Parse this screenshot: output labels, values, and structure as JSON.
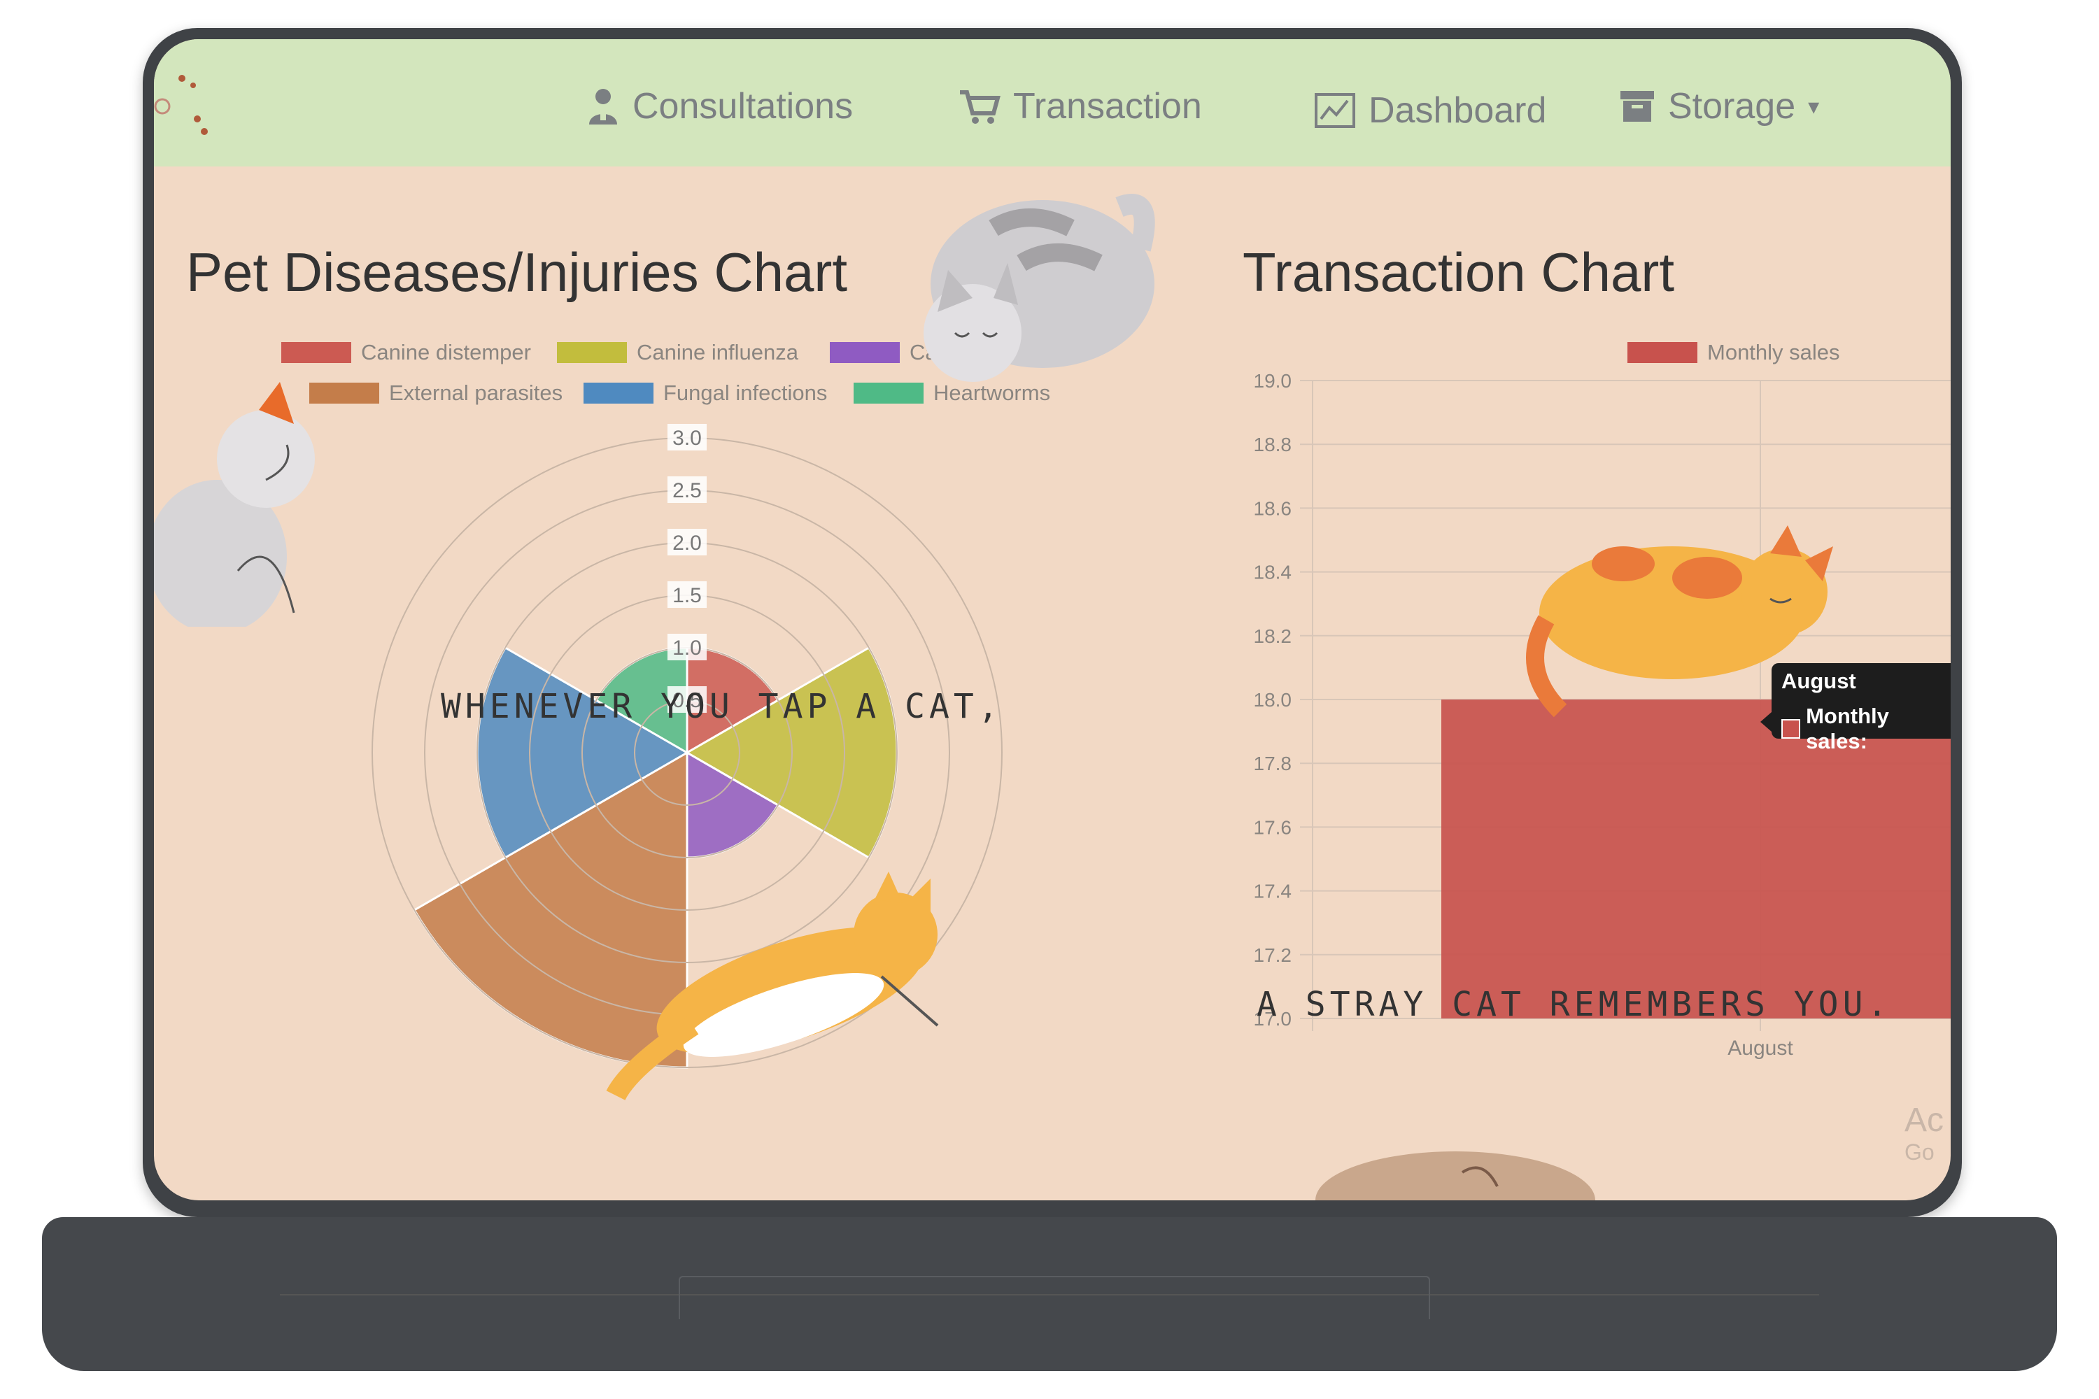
{
  "nav": {
    "items": [
      {
        "label": "Consultations",
        "icon": "user-doctor-icon"
      },
      {
        "label": "Transaction",
        "icon": "cart-icon"
      },
      {
        "label": "Dashboard",
        "icon": "chart-icon"
      },
      {
        "label": "Storage",
        "icon": "archive-icon",
        "caret": "▾"
      }
    ]
  },
  "left_chart": {
    "title": "Pet Diseases/Injuries Chart",
    "overlay_text": "WHENEVER YOU TAP A CAT,"
  },
  "right_chart": {
    "title": "Transaction Chart",
    "overlay_text": "A STRAY CAT REMEMBERS YOU.",
    "tooltip_title": "August",
    "tooltip_body": "Monthly sales:"
  },
  "watermark": {
    "line1": "Ac",
    "line2": "Go"
  },
  "colors": {
    "navbar": "#d3e6bd",
    "page_bg": "#f2d9c5",
    "canine_distemper": "#cc5a52",
    "canine_influenza": "#c2bd3d",
    "canine_parvovirus": "#8f5bc2",
    "external_parasites": "#c47d4a",
    "fungal_infections": "#4f8ac0",
    "heartworms": "#4fba86",
    "bar": "#c8524d"
  },
  "chart_data": [
    {
      "type": "polar-area",
      "title": "Pet Diseases/Injuries Chart",
      "categories": [
        "Canine distemper",
        "Canine influenza",
        "Canine parvovirus",
        "External parasites",
        "Fungal infections",
        "Heartworms"
      ],
      "values": [
        1,
        2,
        1,
        3,
        2,
        1
      ],
      "r_ticks": [
        "3.0",
        "2.5",
        "2.0",
        "1.5",
        "1.0",
        "0.5"
      ],
      "r_range": [
        0,
        3
      ],
      "legend_position": "top"
    },
    {
      "type": "bar",
      "title": "Transaction Chart",
      "categories": [
        "August"
      ],
      "series": [
        {
          "name": "Monthly sales",
          "values": [
            18
          ]
        }
      ],
      "y_ticks": [
        "19.0",
        "18.8",
        "18.6",
        "18.4",
        "18.2",
        "18.0",
        "17.8",
        "17.6",
        "17.4",
        "17.2",
        "17.0"
      ],
      "ylim": [
        17,
        19
      ],
      "grid": true,
      "legend_position": "top-right"
    }
  ]
}
